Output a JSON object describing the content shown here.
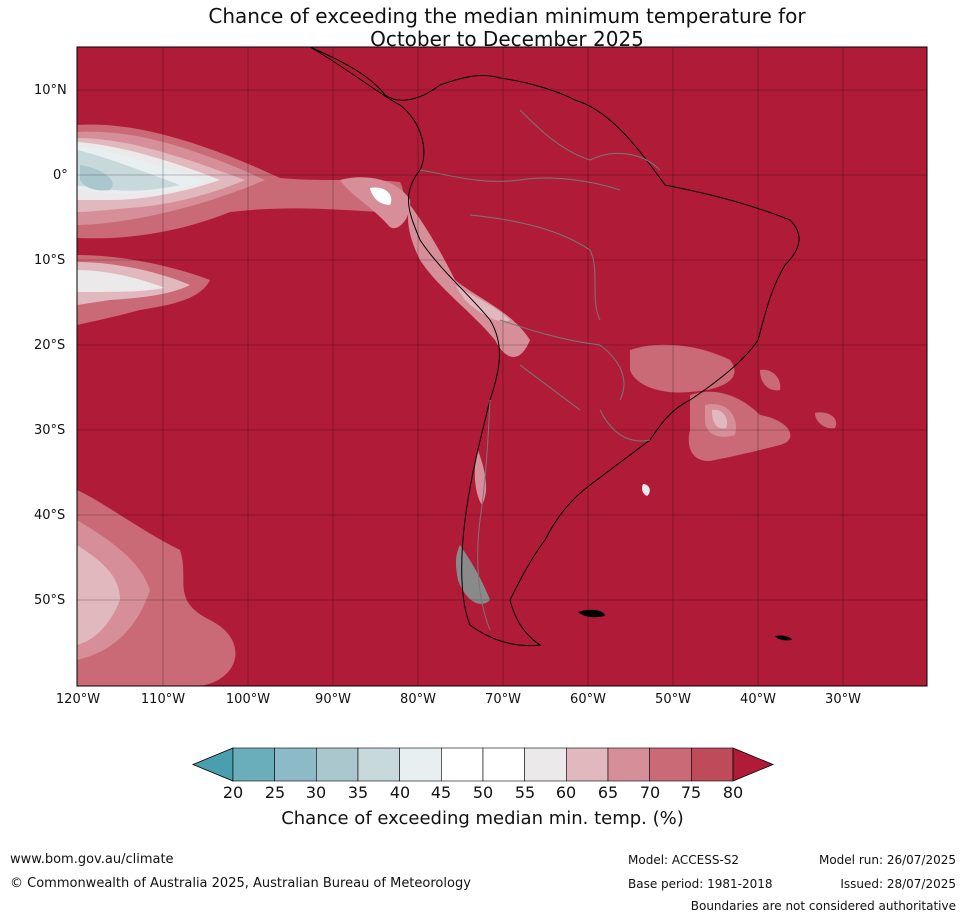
{
  "title": {
    "line1": "Chance of exceeding the median minimum temperature for",
    "line2": "October to December 2025"
  },
  "map": {
    "region": "South America and eastern Pacific",
    "base_fill": "#b01c38",
    "lat_labels": [
      "10°N",
      "0°",
      "10°S",
      "20°S",
      "30°S",
      "40°S",
      "50°S"
    ],
    "lon_labels": [
      "120°W",
      "110°W",
      "100°W",
      "90°W",
      "80°W",
      "70°W",
      "60°W",
      "50°W",
      "40°W",
      "30°W"
    ]
  },
  "colorbar": {
    "title": "Chance of exceeding median min. temp. (%)",
    "ticks": [
      "20",
      "25",
      "30",
      "35",
      "40",
      "45",
      "50",
      "55",
      "60",
      "65",
      "70",
      "75",
      "80"
    ],
    "colors": [
      "#4a9fae",
      "#6aaebb",
      "#8cbac6",
      "#aac7cd",
      "#c8d9dc",
      "#e8eff1",
      "#ffffff",
      "#ffffff",
      "#ebe9ea",
      "#e2b8bf",
      "#d68f99",
      "#ca6a76",
      "#bf4a59",
      "#b01c38"
    ]
  },
  "footer": {
    "website": "www.bom.gov.au/climate",
    "copyright": "© Commonwealth of Australia 2025, Australian Bureau of Meteorology",
    "model": "Model: ACCESS-S2",
    "base_period": "Base period: 1981-2018",
    "model_run": "Model run: 26/07/2025",
    "issued": "Issued: 28/07/2025",
    "disclaimer": "Boundaries are not considered authoritative"
  }
}
